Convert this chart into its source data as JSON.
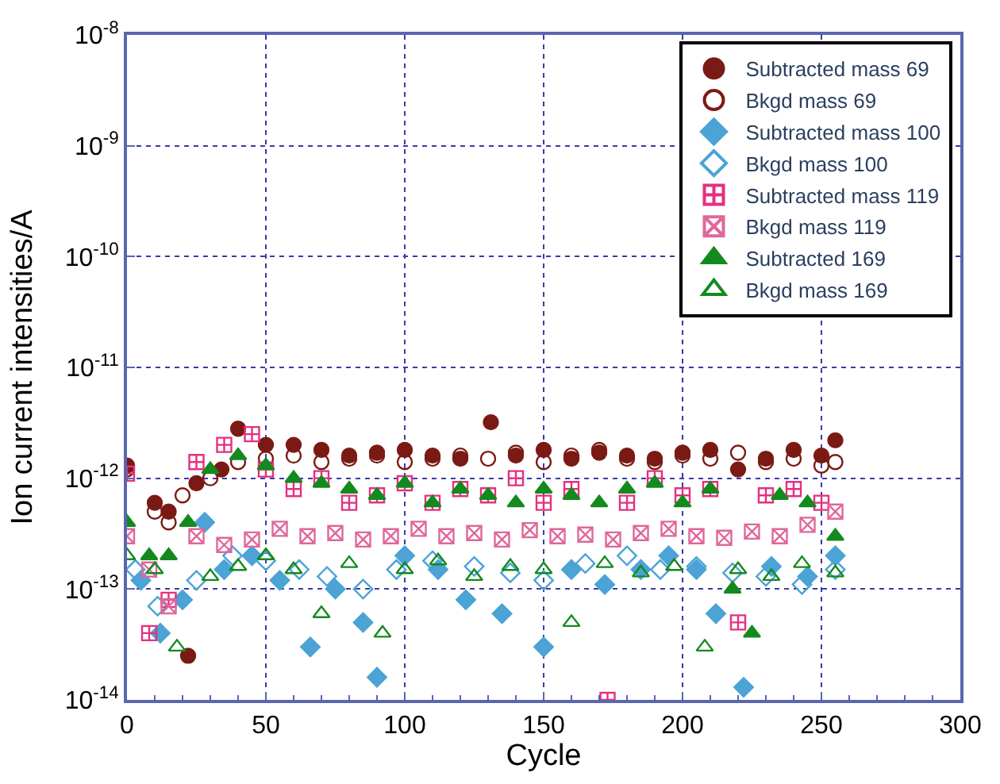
{
  "chart_data": {
    "type": "scatter",
    "xlabel": "Cycle",
    "ylabel": "Ion current intensities/A",
    "log": "y",
    "grid": true,
    "legend": "top right",
    "xlim": [
      0,
      300
    ],
    "xticks": [
      0,
      50,
      100,
      150,
      200,
      250,
      300
    ],
    "ylim": [
      1e-14,
      1e-08
    ],
    "yticks": [
      {
        "value": 1e-14,
        "label": "10$^{-14}$"
      },
      {
        "value": 1e-13,
        "label": "10$^{-13}$"
      },
      {
        "value": 1e-12,
        "label": "10$^{-12}$"
      },
      {
        "value": 1e-11,
        "label": "10$^{-11}$"
      },
      {
        "value": 1e-10,
        "label": "10$^{-10}$"
      },
      {
        "value": 1e-09,
        "label": "10$^{-9}$"
      },
      {
        "value": 1e-08,
        "label": "10$^{-8}$"
      }
    ],
    "series": [
      {
        "name": "Subtracted mass 69",
        "color": "#7b1a14",
        "marker": "circle",
        "x": [
          0,
          10,
          15,
          22,
          25,
          34,
          40,
          50,
          60,
          70,
          80,
          90,
          100,
          110,
          120,
          131,
          140,
          150,
          160,
          170,
          180,
          190,
          200,
          210,
          220,
          230,
          240,
          250,
          255
        ],
        "values": [
          1.3e-12,
          6e-13,
          5e-13,
          2.5e-14,
          9e-13,
          1.2e-12,
          2.8e-12,
          2e-12,
          2e-12,
          1.8e-12,
          1.6e-12,
          1.7e-12,
          1.8e-12,
          1.6e-12,
          1.5e-12,
          3.2e-12,
          1.6e-12,
          1.8e-12,
          1.5e-12,
          1.7e-12,
          1.6e-12,
          1.5e-12,
          1.7e-12,
          1.8e-12,
          1.2e-12,
          1.5e-12,
          1.8e-12,
          1.6e-12,
          2.2e-12
        ]
      },
      {
        "name": "Bkgd mass 69",
        "color": "#7b1a14",
        "marker": "circle-open",
        "x": [
          0,
          10,
          15,
          20,
          30,
          40,
          50,
          60,
          70,
          80,
          90,
          100,
          110,
          120,
          130,
          140,
          150,
          160,
          170,
          180,
          190,
          200,
          210,
          220,
          230,
          240,
          250,
          255
        ],
        "values": [
          1.2e-12,
          5e-13,
          4e-13,
          7e-13,
          1e-12,
          1.4e-12,
          1.5e-12,
          1.6e-12,
          1.4e-12,
          1.5e-12,
          1.6e-12,
          1.4e-12,
          1.5e-12,
          1.6e-12,
          1.5e-12,
          1.7e-12,
          1.4e-12,
          1.6e-12,
          1.8e-12,
          1.5e-12,
          1.4e-12,
          1.6e-12,
          1.5e-12,
          1.7e-12,
          1.4e-12,
          1.5e-12,
          1.3e-12,
          1.4e-12
        ]
      },
      {
        "name": "Subtracted mass 100",
        "color": "#4ba3d6",
        "marker": "diamond",
        "x": [
          5,
          12,
          20,
          28,
          35,
          45,
          55,
          66,
          75,
          85,
          90,
          100,
          112,
          122,
          135,
          150,
          160,
          172,
          185,
          195,
          205,
          212,
          222,
          232,
          245,
          255
        ],
        "values": [
          1.2e-13,
          4e-14,
          8e-14,
          4e-13,
          1.5e-13,
          2e-13,
          1.2e-13,
          3e-14,
          1e-13,
          5e-14,
          1.6e-14,
          2e-13,
          1.5e-13,
          8e-14,
          6e-14,
          3e-14,
          1.5e-13,
          1.1e-13,
          1.5e-13,
          2e-13,
          1.5e-13,
          6e-14,
          1.3e-14,
          1.6e-13,
          1.3e-13,
          2e-13
        ]
      },
      {
        "name": "Bkgd mass 100",
        "color": "#4ba3d6",
        "marker": "diamond-open",
        "x": [
          3,
          11,
          25,
          38,
          50,
          62,
          72,
          85,
          97,
          110,
          125,
          138,
          150,
          165,
          180,
          192,
          205,
          218,
          230,
          243,
          255
        ],
        "values": [
          1.5e-13,
          7e-14,
          1.2e-13,
          2e-13,
          1.8e-13,
          1.5e-13,
          1.3e-13,
          1e-13,
          1.5e-13,
          1.8e-13,
          1.6e-13,
          1.4e-13,
          1.2e-13,
          1.7e-13,
          2e-13,
          1.5e-13,
          1.6e-13,
          1.4e-13,
          1.3e-13,
          1.1e-13,
          1.5e-13
        ]
      },
      {
        "name": "Subtracted mass 119",
        "color": "#e5307f",
        "marker": "cross",
        "x": [
          0,
          8,
          15,
          25,
          35,
          45,
          50,
          60,
          70,
          80,
          90,
          100,
          110,
          120,
          130,
          140,
          150,
          160,
          173,
          180,
          190,
          200,
          210,
          220,
          230,
          240,
          250
        ],
        "values": [
          1.1e-12,
          4e-14,
          8e-14,
          1.4e-12,
          2e-12,
          2.5e-12,
          1.2e-12,
          8e-13,
          1e-12,
          6e-13,
          7e-13,
          9e-13,
          6e-13,
          8e-13,
          7e-13,
          1e-12,
          6e-13,
          8e-13,
          1e-14,
          6e-13,
          1e-12,
          7e-13,
          8e-13,
          5e-14,
          7e-13,
          8e-13,
          6e-13
        ]
      },
      {
        "name": "Bkgd mass 119",
        "color": "#e0679a",
        "marker": "cross",
        "x": [
          0,
          8,
          15,
          25,
          35,
          45,
          55,
          65,
          75,
          85,
          95,
          105,
          115,
          125,
          135,
          145,
          155,
          165,
          175,
          185,
          195,
          205,
          215,
          225,
          235,
          245,
          255
        ],
        "values": [
          3e-13,
          1.5e-13,
          7e-14,
          3e-13,
          2.5e-13,
          2.8e-13,
          3.5e-13,
          3e-13,
          3.2e-13,
          2.8e-13,
          3e-13,
          3.5e-13,
          3e-13,
          3.2e-13,
          2.8e-13,
          3.4e-13,
          3e-13,
          3.1e-13,
          2.8e-13,
          3.2e-13,
          3.5e-13,
          3e-13,
          2.9e-13,
          3.3e-13,
          3e-13,
          3.8e-13,
          5e-13
        ]
      },
      {
        "name": "Subtracted 169",
        "color": "#138a1e",
        "marker": "triangle-up",
        "x": [
          0,
          8,
          15,
          22,
          30,
          40,
          50,
          60,
          70,
          80,
          90,
          100,
          110,
          120,
          130,
          140,
          150,
          160,
          170,
          180,
          190,
          200,
          210,
          218,
          225,
          235,
          245,
          255
        ],
        "values": [
          4e-13,
          2e-13,
          2e-13,
          4e-13,
          1.2e-12,
          1.6e-12,
          1.3e-12,
          1e-12,
          9e-13,
          8e-13,
          7e-13,
          9e-13,
          6e-13,
          8e-13,
          7e-13,
          6e-13,
          8e-13,
          7e-13,
          6e-13,
          8e-13,
          9e-13,
          6e-13,
          8e-13,
          1e-13,
          4e-14,
          7e-13,
          6e-13,
          3e-13
        ]
      },
      {
        "name": "Bkgd mass 169",
        "color": "#138a1e",
        "marker": "triangle-up-open",
        "x": [
          0,
          10,
          18,
          30,
          40,
          50,
          60,
          70,
          80,
          92,
          100,
          112,
          125,
          138,
          150,
          160,
          172,
          185,
          197,
          208,
          220,
          232,
          243,
          255
        ],
        "values": [
          2e-13,
          1.5e-13,
          3e-14,
          1.3e-13,
          1.6e-13,
          2e-13,
          1.5e-13,
          6e-14,
          1.7e-13,
          4e-14,
          1.5e-13,
          1.8e-13,
          1.3e-13,
          1.6e-13,
          1.5e-13,
          5e-14,
          1.7e-13,
          1.4e-13,
          1.6e-13,
          3e-14,
          1.5e-13,
          1.3e-13,
          1.7e-13,
          1.4e-13
        ]
      }
    ]
  }
}
